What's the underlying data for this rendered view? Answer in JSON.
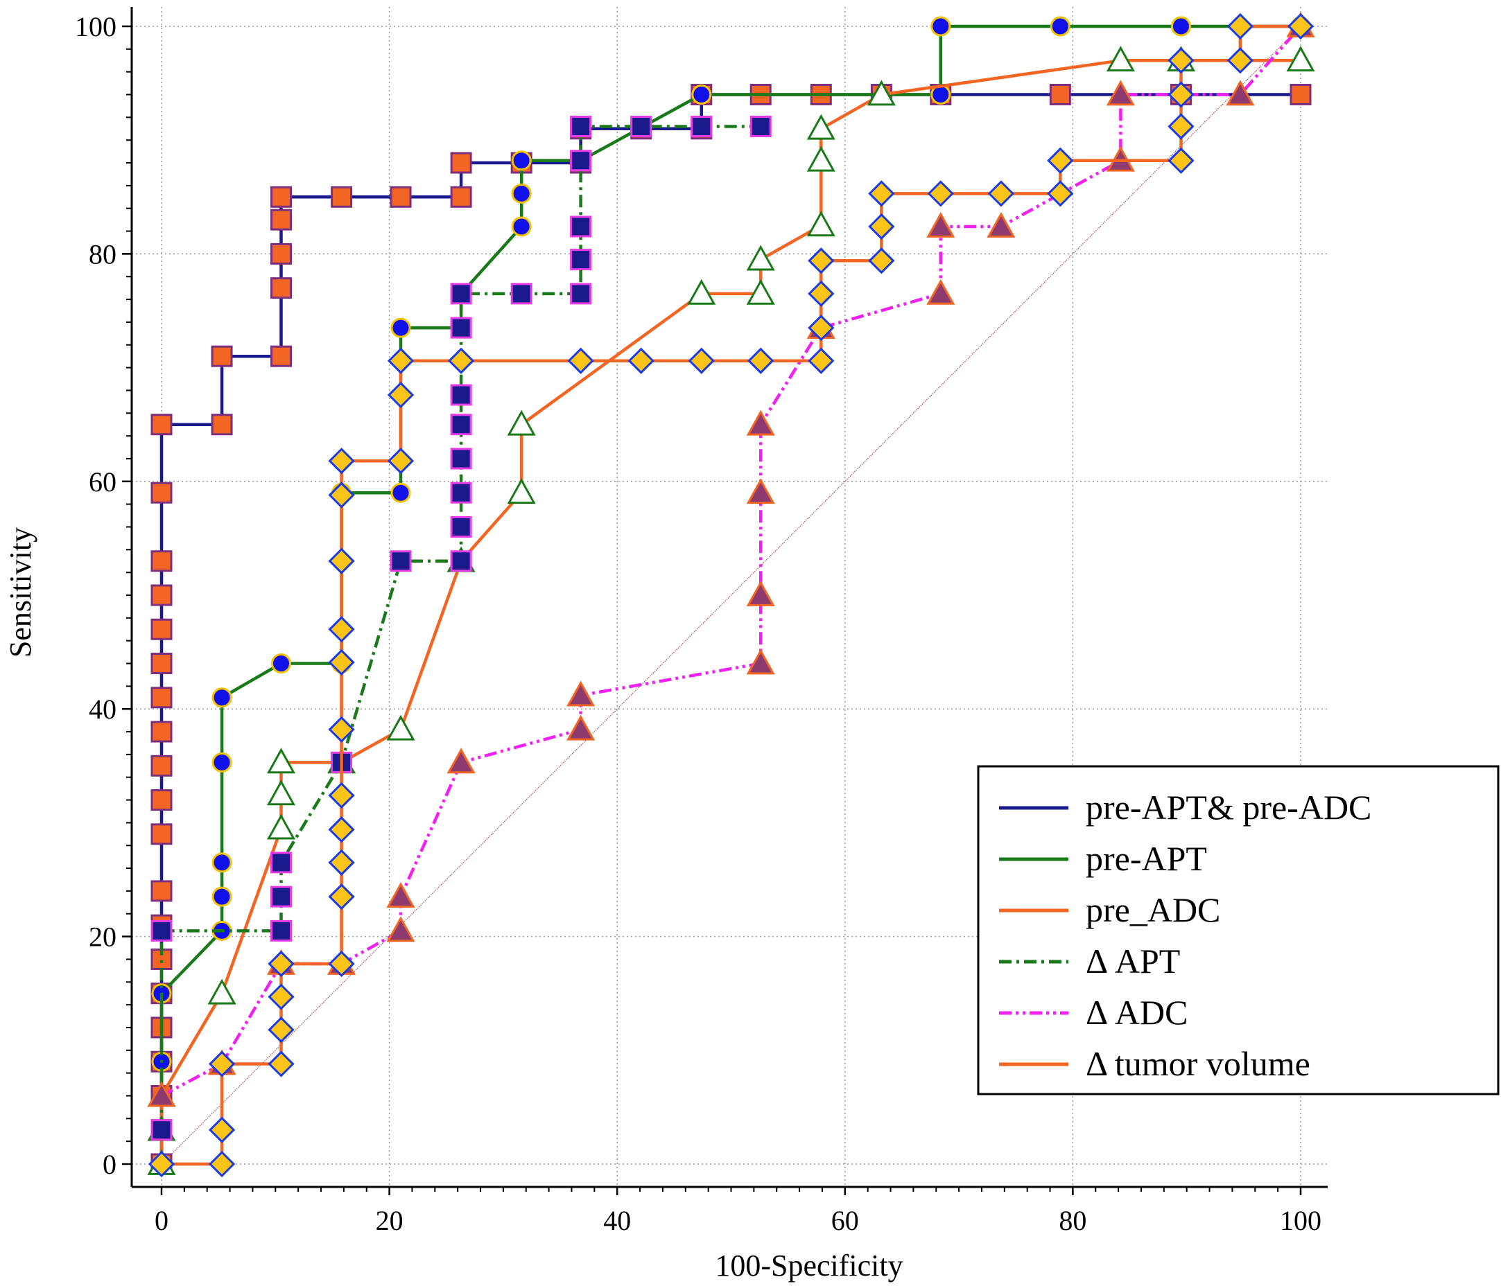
{
  "chart_data": {
    "type": "line",
    "title": "",
    "xlabel": "100-Specificity",
    "ylabel": "Sensitivity",
    "xlim": [
      -3,
      103
    ],
    "ylim": [
      -2,
      101
    ],
    "xticks": [
      0,
      20,
      40,
      60,
      80,
      100
    ],
    "yticks": [
      0,
      20,
      40,
      60,
      80,
      100
    ],
    "xtick_labels": [
      "0",
      "20",
      "40",
      "60",
      "80",
      "100"
    ],
    "ytick_labels": [
      "0",
      "20",
      "40",
      "60",
      "80",
      "100"
    ],
    "grid": true,
    "legend_position": "bottom-right",
    "reference_line": {
      "from": [
        0,
        0
      ],
      "to": [
        100,
        100
      ],
      "color": "#b06060"
    },
    "series": [
      {
        "name": "pre-APT& pre-ADC",
        "line_color": "#1a1a8c",
        "dash": "solid",
        "marker": "square",
        "marker_fill": "#f26522",
        "marker_stroke": "#7d2f7d",
        "points": [
          [
            0,
            0
          ],
          [
            0,
            3
          ],
          [
            0,
            6
          ],
          [
            0,
            9
          ],
          [
            0,
            12
          ],
          [
            0,
            15
          ],
          [
            0,
            18
          ],
          [
            0,
            21
          ],
          [
            0,
            24
          ],
          [
            0,
            29
          ],
          [
            0,
            32
          ],
          [
            0,
            35
          ],
          [
            0,
            38
          ],
          [
            0,
            41
          ],
          [
            0,
            44
          ],
          [
            0,
            47
          ],
          [
            0,
            50
          ],
          [
            0,
            53
          ],
          [
            0,
            59
          ],
          [
            0,
            65
          ],
          [
            5.3,
            65
          ],
          [
            5.3,
            71
          ],
          [
            10.5,
            71
          ],
          [
            10.5,
            77
          ],
          [
            10.5,
            80
          ],
          [
            10.5,
            83
          ],
          [
            10.5,
            85
          ],
          [
            15.8,
            85
          ],
          [
            21,
            85
          ],
          [
            26.3,
            85
          ],
          [
            26.3,
            88
          ],
          [
            31.6,
            88
          ],
          [
            36.8,
            88
          ],
          [
            36.8,
            91
          ],
          [
            42.1,
            91
          ],
          [
            47.4,
            91
          ],
          [
            47.4,
            94
          ],
          [
            52.6,
            94
          ],
          [
            57.9,
            94
          ],
          [
            63.2,
            94
          ],
          [
            68.4,
            94
          ],
          [
            78.9,
            94
          ],
          [
            89.5,
            94
          ],
          [
            100,
            94
          ]
        ]
      },
      {
        "name": "pre-APT",
        "line_color": "#1a7a1a",
        "dash": "solid",
        "marker": "circle",
        "marker_fill": "#1010e8",
        "marker_stroke": "#f2c200",
        "points": [
          [
            0,
            0
          ],
          [
            0,
            9
          ],
          [
            0,
            15
          ],
          [
            5.3,
            20.5
          ],
          [
            5.3,
            23.5
          ],
          [
            5.3,
            26.5
          ],
          [
            5.3,
            35.3
          ],
          [
            5.3,
            41
          ],
          [
            10.5,
            44
          ],
          [
            15.8,
            44
          ],
          [
            15.8,
            59
          ],
          [
            21,
            59
          ],
          [
            21,
            73.5
          ],
          [
            26.3,
            73.5
          ],
          [
            26.3,
            76.5
          ],
          [
            31.6,
            82.4
          ],
          [
            31.6,
            85.3
          ],
          [
            31.6,
            88.2
          ],
          [
            36.8,
            88.2
          ],
          [
            47.4,
            94
          ],
          [
            68.4,
            94
          ],
          [
            68.4,
            100
          ],
          [
            78.9,
            100
          ],
          [
            89.5,
            100
          ],
          [
            100,
            100
          ]
        ]
      },
      {
        "name": "pre_ADC",
        "line_color": "#f26522",
        "dash": "solid",
        "marker": "triangle-open",
        "marker_fill": "#ffffff",
        "marker_stroke": "#1a7a1a",
        "points": [
          [
            0,
            0
          ],
          [
            0,
            3
          ],
          [
            0,
            6
          ],
          [
            5.3,
            15
          ],
          [
            10.5,
            29.5
          ],
          [
            10.5,
            32.5
          ],
          [
            10.5,
            35.3
          ],
          [
            15.8,
            35.3
          ],
          [
            21,
            38.2
          ],
          [
            26.3,
            53
          ],
          [
            31.6,
            59
          ],
          [
            31.6,
            65
          ],
          [
            47.4,
            76.5
          ],
          [
            52.6,
            76.5
          ],
          [
            52.6,
            79.5
          ],
          [
            57.9,
            82.5
          ],
          [
            57.9,
            88.2
          ],
          [
            57.9,
            91
          ],
          [
            63.2,
            94
          ],
          [
            84.2,
            97
          ],
          [
            89.5,
            97
          ],
          [
            100,
            97
          ]
        ]
      },
      {
        "name": "Δ APT",
        "line_color": "#1a7a1a",
        "dash": "dashdot",
        "marker": "square",
        "marker_fill": "#1a1a8c",
        "marker_stroke": "#e63ce6",
        "points": [
          [
            0,
            3
          ],
          [
            0,
            20.5
          ],
          [
            10.5,
            20.5
          ],
          [
            10.5,
            23.5
          ],
          [
            10.5,
            26.5
          ],
          [
            15.8,
            35.3
          ],
          [
            21,
            53
          ],
          [
            26.3,
            53
          ],
          [
            26.3,
            56
          ],
          [
            26.3,
            59
          ],
          [
            26.3,
            62
          ],
          [
            26.3,
            65
          ],
          [
            26.3,
            67.6
          ],
          [
            26.3,
            73.5
          ],
          [
            26.3,
            76.5
          ],
          [
            31.6,
            76.5
          ],
          [
            36.8,
            76.5
          ],
          [
            36.8,
            79.5
          ],
          [
            36.8,
            82.4
          ],
          [
            36.8,
            88.2
          ],
          [
            36.8,
            91.2
          ],
          [
            42.1,
            91.2
          ],
          [
            47.4,
            91.2
          ],
          [
            52.6,
            91.2
          ]
        ]
      },
      {
        "name": "Δ ADC",
        "line_color": "#f020f0",
        "dash": "dashdotdot",
        "marker": "triangle-filled",
        "marker_fill": "#8e3a6e",
        "marker_stroke": "#f26522",
        "points": [
          [
            0,
            6
          ],
          [
            5.3,
            8.8
          ],
          [
            10.5,
            17.6
          ],
          [
            15.8,
            17.6
          ],
          [
            21,
            20.5
          ],
          [
            21,
            23.5
          ],
          [
            26.3,
            35.3
          ],
          [
            36.8,
            38.2
          ],
          [
            36.8,
            41.2
          ],
          [
            52.6,
            44
          ],
          [
            52.6,
            50
          ],
          [
            52.6,
            59
          ],
          [
            52.6,
            65
          ],
          [
            57.9,
            73.5
          ],
          [
            68.4,
            76.5
          ],
          [
            68.4,
            82.4
          ],
          [
            73.7,
            82.4
          ],
          [
            84.2,
            88.2
          ],
          [
            84.2,
            94
          ],
          [
            94.7,
            94
          ],
          [
            100,
            100
          ]
        ]
      },
      {
        "name": "Δ tumor volume",
        "line_color": "#f26522",
        "dash": "solid",
        "marker": "diamond",
        "marker_fill": "#fcc419",
        "marker_stroke": "#1a3ae6",
        "points": [
          [
            0,
            0
          ],
          [
            5.3,
            0
          ],
          [
            5.3,
            3
          ],
          [
            5.3,
            8.8
          ],
          [
            10.5,
            8.8
          ],
          [
            10.5,
            11.8
          ],
          [
            10.5,
            14.7
          ],
          [
            10.5,
            17.6
          ],
          [
            15.8,
            17.6
          ],
          [
            15.8,
            23.5
          ],
          [
            15.8,
            26.5
          ],
          [
            15.8,
            29.4
          ],
          [
            15.8,
            32.4
          ],
          [
            15.8,
            38.2
          ],
          [
            15.8,
            44.1
          ],
          [
            15.8,
            47
          ],
          [
            15.8,
            53
          ],
          [
            15.8,
            58.8
          ],
          [
            15.8,
            61.8
          ],
          [
            21,
            61.8
          ],
          [
            21,
            67.6
          ],
          [
            21,
            70.6
          ],
          [
            26.3,
            70.6
          ],
          [
            36.8,
            70.6
          ],
          [
            42.1,
            70.6
          ],
          [
            47.4,
            70.6
          ],
          [
            52.6,
            70.6
          ],
          [
            57.9,
            70.6
          ],
          [
            57.9,
            73.5
          ],
          [
            57.9,
            76.5
          ],
          [
            57.9,
            79.4
          ],
          [
            63.2,
            79.4
          ],
          [
            63.2,
            82.4
          ],
          [
            63.2,
            85.3
          ],
          [
            68.4,
            85.3
          ],
          [
            73.7,
            85.3
          ],
          [
            78.9,
            85.3
          ],
          [
            78.9,
            88.2
          ],
          [
            89.5,
            88.2
          ],
          [
            89.5,
            91.2
          ],
          [
            89.5,
            94
          ],
          [
            89.5,
            97
          ],
          [
            94.7,
            97
          ],
          [
            94.7,
            100
          ],
          [
            100,
            100
          ]
        ]
      }
    ]
  }
}
